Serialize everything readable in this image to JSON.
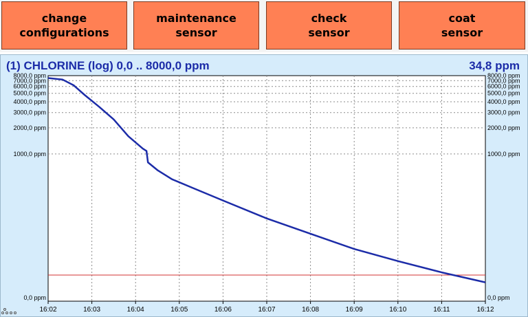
{
  "buttons": [
    {
      "name": "change-configurations-button",
      "label": "change\nconfigurations"
    },
    {
      "name": "maintenance-sensor-button",
      "label": "maintenance\nsensor"
    },
    {
      "name": "check-sensor-button",
      "label": "check\nsensor"
    },
    {
      "name": "coat-sensor-button",
      "label": "coat\nsensor"
    }
  ],
  "trend": {
    "title": "(1) CHLORINE (log) 0,0 .. 8000,0 ppm",
    "current_value": "34,8 ppm"
  },
  "colors": {
    "button": "#ff8054",
    "panel": "#d6ecfb",
    "trace": "#1c2ca8",
    "threshold": "#d03030"
  },
  "chart_data": {
    "type": "line",
    "yscale": "log",
    "ylim": [
      0,
      8000
    ],
    "threshold": 40,
    "y_ticks": [
      {
        "v": 8000,
        "label": "8000,0 ppm"
      },
      {
        "v": 7000,
        "label": "7000,0 ppm"
      },
      {
        "v": 6000,
        "label": "6000,0 ppm"
      },
      {
        "v": 5000,
        "label": "5000,0 ppm"
      },
      {
        "v": 4000,
        "label": "4000,0 ppm"
      },
      {
        "v": 3000,
        "label": "3000,0 ppm"
      },
      {
        "v": 2000,
        "label": "2000,0 ppm"
      },
      {
        "v": 1000,
        "label": "1000,0 ppm"
      },
      {
        "v": 0,
        "label": "0,0 ppm"
      }
    ],
    "x_ticks": [
      "16:02",
      "16:03",
      "16:04",
      "16:05",
      "16:06",
      "16:07",
      "16:08",
      "16:09",
      "16:10",
      "16:11",
      "16:12"
    ],
    "xlim": [
      "16:02",
      "16:12"
    ],
    "series": [
      {
        "points": [
          [
            "16:02:00",
            7500
          ],
          [
            "16:02:20",
            7200
          ],
          [
            "16:02:35",
            6200
          ],
          [
            "16:02:50",
            4800
          ],
          [
            "16:03:10",
            3500
          ],
          [
            "16:03:30",
            2500
          ],
          [
            "16:03:50",
            1600
          ],
          [
            "16:04:10",
            1150
          ],
          [
            "16:04:15",
            1080
          ],
          [
            "16:04:17",
            800
          ],
          [
            "16:04:30",
            650
          ],
          [
            "16:04:50",
            510
          ],
          [
            "16:05:20",
            400
          ],
          [
            "16:06:00",
            290
          ],
          [
            "16:07:00",
            180
          ],
          [
            "16:08:00",
            120
          ],
          [
            "16:09:00",
            80
          ],
          [
            "16:10:00",
            58
          ],
          [
            "16:11:00",
            43
          ],
          [
            "16:12:00",
            33
          ]
        ]
      }
    ]
  }
}
